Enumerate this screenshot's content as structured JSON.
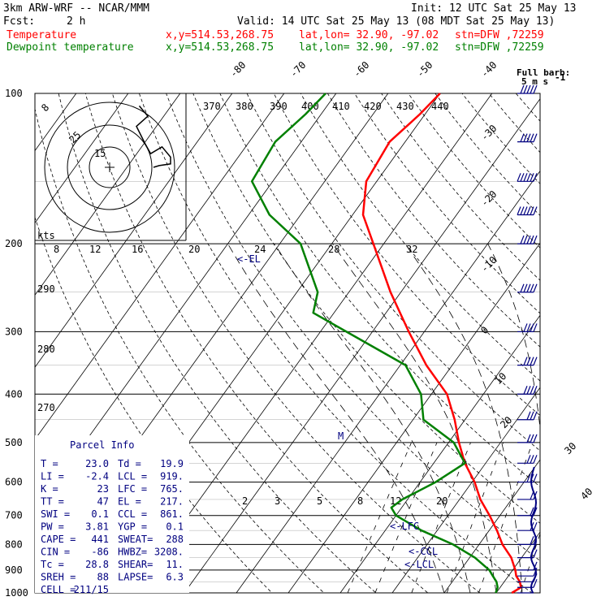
{
  "header": {
    "model": "3km ARW-WRF -- NCAR/MMM",
    "init": "Init: 12 UTC Sat 25 May 13",
    "fcst_label": "Fcst:",
    "fcst_hours": "2 h",
    "valid": "Valid: 14 UTC Sat 25 May 13 (08 MDT Sat 25 May 13)",
    "temp_label": "Temperature",
    "dew_label": "Dewpoint temperature",
    "coords": "x,y=514.53,268.75",
    "latlon": "lat,lon= 32.90, -97.02",
    "station": "stn=DFW ,72259",
    "barb_title": "Full barb:",
    "barb_units": "5 m s",
    "barb_exp": "-1"
  },
  "colors": {
    "temperature": "#ff0000",
    "dewpoint": "#008000",
    "header_temp": "#ff0000",
    "header_dew": "#008000",
    "parcel_text": "#000080",
    "wind": "#000080",
    "grid": "#000000"
  },
  "hodograph": {
    "ring_labels": [
      "8",
      "25",
      "15"
    ],
    "kts_label": "kts",
    "points": [
      [
        0,
        0
      ],
      [
        2,
        0.5
      ],
      [
        6,
        1
      ],
      [
        6,
        3
      ],
      [
        3,
        6
      ],
      [
        -1,
        4
      ],
      [
        -3,
        7
      ],
      [
        -6,
        12
      ],
      [
        -2,
        15
      ],
      [
        -5,
        18
      ]
    ]
  },
  "parcel": {
    "title": "Parcel Info",
    "rows": [
      [
        "T  =",
        "23.0",
        "Td =",
        "19.9"
      ],
      [
        "LI =",
        "-2.4",
        "LCL =",
        "919."
      ],
      [
        "K  =",
        "23",
        "LFC =",
        "765."
      ],
      [
        "TT =",
        "47",
        "EL  =",
        "217."
      ],
      [
        "SWI =",
        "0.1",
        "CCL =",
        "861."
      ],
      [
        "PW  =",
        "3.81",
        "YGP =",
        "0.1"
      ],
      [
        "CAPE =",
        "441",
        "SWEAT=",
        "288"
      ],
      [
        "CIN  =",
        "-86",
        "HWBZ=",
        "3208."
      ],
      [
        "Tc  =",
        "28.8",
        "SHEAR=",
        "11."
      ],
      [
        "SREH =",
        "88",
        "LAPSE=",
        "6.3"
      ],
      [
        "CELL =",
        "211/15",
        "",
        ""
      ]
    ]
  },
  "levels": {
    "el": "<-EL",
    "lfc": "<-LFC",
    "ccl": "<-CCL",
    "lcl": "<-LCL",
    "m": "M"
  },
  "chart_data": {
    "type": "line",
    "title": "",
    "xlabel": "",
    "ylabel": "",
    "pressure_ticks": [
      1000,
      900,
      800,
      700,
      600,
      500,
      400,
      300,
      200,
      100
    ],
    "ylim": [
      1000,
      100
    ],
    "isotherm_labels": [
      "-80",
      "-70",
      "-60",
      "-50",
      "-40",
      "-30",
      "-20",
      "-10",
      "0",
      "10",
      "20",
      "30",
      "40"
    ],
    "theta_labels": [
      "370",
      "380",
      "390",
      "400",
      "410",
      "420",
      "430",
      "440"
    ],
    "mixing_ratio_labels_lower": [
      "2",
      "3",
      "5",
      "8",
      "12",
      "20"
    ],
    "hodo_speed_labels": [
      "8",
      "12",
      "16",
      "20",
      "24",
      "28",
      "32"
    ],
    "left_theta_labels": [
      "290",
      "280",
      "270"
    ],
    "series": [
      {
        "name": "Temperature",
        "points": [
          [
            1000,
            23
          ],
          [
            975,
            24
          ],
          [
            950,
            23
          ],
          [
            925,
            21.5
          ],
          [
            900,
            20.5
          ],
          [
            850,
            18
          ],
          [
            800,
            14.5
          ],
          [
            750,
            11.5
          ],
          [
            700,
            8
          ],
          [
            650,
            4
          ],
          [
            600,
            0.5
          ],
          [
            550,
            -4
          ],
          [
            500,
            -8
          ],
          [
            450,
            -12
          ],
          [
            400,
            -17
          ],
          [
            350,
            -25
          ],
          [
            300,
            -33
          ],
          [
            250,
            -42
          ],
          [
            200,
            -52
          ],
          [
            175,
            -58
          ],
          [
            150,
            -62
          ],
          [
            125,
            -63
          ],
          [
            110,
            -61
          ],
          [
            100,
            -60
          ]
        ]
      },
      {
        "name": "Dewpoint temperature",
        "points": [
          [
            1000,
            19.9
          ],
          [
            975,
            19.5
          ],
          [
            950,
            18.5
          ],
          [
            925,
            17
          ],
          [
            900,
            15.5
          ],
          [
            850,
            11
          ],
          [
            800,
            5
          ],
          [
            750,
            -3
          ],
          [
            700,
            -10
          ],
          [
            675,
            -12
          ],
          [
            650,
            -11
          ],
          [
            600,
            -7
          ],
          [
            550,
            -4
          ],
          [
            500,
            -9
          ],
          [
            450,
            -18
          ],
          [
            400,
            -22
          ],
          [
            350,
            -29
          ],
          [
            300,
            -45
          ],
          [
            275,
            -54
          ],
          [
            250,
            -56
          ],
          [
            200,
            -66
          ],
          [
            175,
            -76
          ],
          [
            150,
            -84
          ],
          [
            125,
            -85
          ],
          [
            110,
            -83
          ],
          [
            100,
            -82
          ]
        ]
      }
    ],
    "wind_barbs": [
      [
        1000,
        2
      ],
      [
        975,
        3
      ],
      [
        950,
        4
      ],
      [
        925,
        5
      ],
      [
        900,
        6
      ],
      [
        850,
        8
      ],
      [
        800,
        10
      ],
      [
        750,
        10
      ],
      [
        700,
        12
      ],
      [
        650,
        12
      ],
      [
        600,
        14
      ],
      [
        550,
        14
      ],
      [
        500,
        15
      ],
      [
        450,
        16
      ],
      [
        400,
        18
      ],
      [
        350,
        20
      ],
      [
        300,
        22
      ],
      [
        250,
        24
      ],
      [
        200,
        26
      ],
      [
        175,
        28
      ],
      [
        150,
        28
      ],
      [
        125,
        26
      ],
      [
        100,
        24
      ]
    ]
  }
}
